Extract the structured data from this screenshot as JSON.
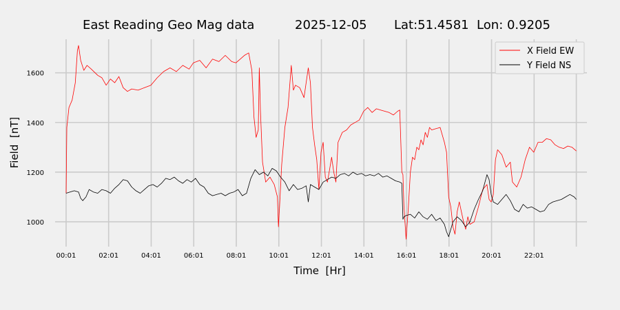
{
  "chart_data": {
    "type": "line",
    "title_parts": {
      "name": "East Reading Geo Mag data",
      "date": "2025-12-05",
      "coords": "Lat:51.4581  Lon: 0.9205"
    },
    "xlabel": "Time  [Hr]",
    "ylabel": "Field  [nT]",
    "x_unit": "hours",
    "xlim": [
      -0.5,
      24.5
    ],
    "ylim": [
      900,
      1735
    ],
    "x_ticks": [
      0.0167,
      2.0167,
      4.0167,
      6.0167,
      8.0167,
      10.0167,
      12.0167,
      14.0167,
      16.0167,
      18.0167,
      20.0167,
      22.0167,
      24.0
    ],
    "x_tick_labels": [
      "00:01",
      "02:01",
      "04:01",
      "06:01",
      "08:01",
      "10:01",
      "12:01",
      "14:01",
      "16:01",
      "18:01",
      "20:01",
      "22:01",
      ""
    ],
    "y_ticks": [
      1000,
      1200,
      1400,
      1600
    ],
    "y_tick_labels": [
      "1000",
      "1200",
      "1400",
      "1600"
    ],
    "grid": true,
    "legend_position": "top-right",
    "series": [
      {
        "name": "X Field EW",
        "color": "#ff0000",
        "x": [
          0.0167,
          0.05,
          0.15,
          0.3,
          0.45,
          0.55,
          0.6,
          0.7,
          0.85,
          1.0,
          1.2,
          1.5,
          1.7,
          1.9,
          2.1,
          2.3,
          2.5,
          2.7,
          2.9,
          3.1,
          3.4,
          3.7,
          4.0,
          4.3,
          4.6,
          4.9,
          5.2,
          5.5,
          5.8,
          6.0,
          6.3,
          6.6,
          6.9,
          7.2,
          7.5,
          7.8,
          8.0,
          8.2,
          8.4,
          8.6,
          8.75,
          8.85,
          8.95,
          9.05,
          9.1,
          9.15,
          9.25,
          9.4,
          9.6,
          9.8,
          9.95,
          10.0,
          10.05,
          10.15,
          10.3,
          10.45,
          10.6,
          10.7,
          10.8,
          11.0,
          11.2,
          11.4,
          11.5,
          11.6,
          11.7,
          11.8,
          11.9,
          12.0,
          12.1,
          12.2,
          12.3,
          12.4,
          12.5,
          12.6,
          12.7,
          12.8,
          13.0,
          13.2,
          13.4,
          13.6,
          13.8,
          14.0,
          14.2,
          14.4,
          14.6,
          14.8,
          15.0,
          15.2,
          15.4,
          15.6,
          15.7,
          15.8,
          15.85,
          15.9,
          16.0,
          16.1,
          16.2,
          16.3,
          16.4,
          16.5,
          16.6,
          16.7,
          16.8,
          16.9,
          17.0,
          17.1,
          17.2,
          17.4,
          17.6,
          17.8,
          17.9,
          18.0,
          18.1,
          18.2,
          18.3,
          18.4,
          18.5,
          18.6,
          18.7,
          18.8,
          18.9,
          19.0,
          19.2,
          19.4,
          19.6,
          19.8,
          19.9,
          20.0,
          20.1,
          20.2,
          20.3,
          20.5,
          20.7,
          20.9,
          21.0,
          21.2,
          21.4,
          21.6,
          21.8,
          22.0,
          22.2,
          22.4,
          22.6,
          22.8,
          23.0,
          23.2,
          23.4,
          23.6,
          23.8,
          24.0
        ],
        "values": [
          1115,
          1380,
          1460,
          1490,
          1560,
          1690,
          1710,
          1650,
          1610,
          1630,
          1615,
          1590,
          1580,
          1550,
          1575,
          1560,
          1585,
          1540,
          1525,
          1535,
          1530,
          1540,
          1550,
          1580,
          1605,
          1620,
          1605,
          1630,
          1615,
          1640,
          1650,
          1620,
          1655,
          1645,
          1670,
          1645,
          1640,
          1655,
          1670,
          1680,
          1610,
          1420,
          1340,
          1370,
          1620,
          1450,
          1240,
          1160,
          1180,
          1150,
          1100,
          980,
          1060,
          1230,
          1380,
          1460,
          1630,
          1530,
          1550,
          1540,
          1500,
          1620,
          1560,
          1380,
          1310,
          1250,
          1130,
          1280,
          1320,
          1180,
          1160,
          1210,
          1260,
          1200,
          1160,
          1320,
          1360,
          1370,
          1390,
          1400,
          1410,
          1445,
          1460,
          1440,
          1455,
          1450,
          1445,
          1440,
          1430,
          1445,
          1450,
          1200,
          1190,
          1060,
          930,
          1050,
          1200,
          1260,
          1250,
          1300,
          1290,
          1330,
          1310,
          1360,
          1340,
          1380,
          1370,
          1375,
          1380,
          1320,
          1280,
          1100,
          1060,
          980,
          950,
          1040,
          1080,
          1040,
          1000,
          970,
          1020,
          990,
          1000,
          1060,
          1130,
          1150,
          1090,
          1080,
          1110,
          1250,
          1290,
          1270,
          1220,
          1240,
          1160,
          1140,
          1180,
          1250,
          1300,
          1280,
          1320,
          1320,
          1335,
          1330,
          1310,
          1300,
          1295,
          1305,
          1300,
          1285
        ]
      },
      {
        "name": "Y Field NS",
        "color": "#000000",
        "x": [
          0.0167,
          0.2,
          0.4,
          0.6,
          0.7,
          0.8,
          0.95,
          1.1,
          1.3,
          1.5,
          1.7,
          1.9,
          2.1,
          2.3,
          2.5,
          2.7,
          2.9,
          3.1,
          3.3,
          3.5,
          3.7,
          3.9,
          4.1,
          4.3,
          4.5,
          4.7,
          4.9,
          5.1,
          5.3,
          5.5,
          5.7,
          5.9,
          6.1,
          6.3,
          6.5,
          6.7,
          6.9,
          7.1,
          7.3,
          7.5,
          7.7,
          7.9,
          8.1,
          8.3,
          8.5,
          8.7,
          8.9,
          9.1,
          9.3,
          9.5,
          9.7,
          9.9,
          10.1,
          10.3,
          10.5,
          10.7,
          10.9,
          11.1,
          11.3,
          11.4,
          11.5,
          11.7,
          11.9,
          12.1,
          12.3,
          12.5,
          12.7,
          12.9,
          13.1,
          13.3,
          13.5,
          13.7,
          13.9,
          14.1,
          14.3,
          14.5,
          14.7,
          14.9,
          15.1,
          15.3,
          15.5,
          15.7,
          15.8,
          15.85,
          15.9,
          16.0,
          16.2,
          16.4,
          16.6,
          16.8,
          17.0,
          17.2,
          17.4,
          17.6,
          17.8,
          17.9,
          18.0,
          18.2,
          18.4,
          18.6,
          18.8,
          19.0,
          19.2,
          19.4,
          19.6,
          19.8,
          19.9,
          20.0,
          20.1,
          20.3,
          20.5,
          20.7,
          20.9,
          21.1,
          21.3,
          21.5,
          21.7,
          21.9,
          22.1,
          22.3,
          22.5,
          22.7,
          22.9,
          23.1,
          23.3,
          23.5,
          23.7,
          23.9,
          24.0
        ],
        "values": [
          1115,
          1120,
          1125,
          1120,
          1095,
          1085,
          1100,
          1130,
          1120,
          1115,
          1130,
          1125,
          1115,
          1135,
          1150,
          1170,
          1165,
          1140,
          1125,
          1115,
          1130,
          1145,
          1150,
          1140,
          1155,
          1175,
          1170,
          1180,
          1165,
          1155,
          1170,
          1160,
          1175,
          1150,
          1140,
          1115,
          1105,
          1110,
          1115,
          1105,
          1115,
          1120,
          1130,
          1105,
          1115,
          1175,
          1210,
          1190,
          1200,
          1185,
          1215,
          1205,
          1180,
          1160,
          1125,
          1150,
          1130,
          1135,
          1145,
          1080,
          1150,
          1140,
          1130,
          1160,
          1170,
          1180,
          1175,
          1190,
          1195,
          1185,
          1200,
          1190,
          1195,
          1185,
          1190,
          1185,
          1195,
          1180,
          1185,
          1175,
          1165,
          1160,
          1155,
          1010,
          1020,
          1025,
          1030,
          1015,
          1040,
          1020,
          1010,
          1030,
          1005,
          1015,
          990,
          960,
          940,
          1000,
          1020,
          1005,
          980,
          1000,
          1050,
          1090,
          1125,
          1190,
          1170,
          1110,
          1080,
          1070,
          1090,
          1110,
          1085,
          1050,
          1040,
          1070,
          1055,
          1060,
          1050,
          1040,
          1045,
          1070,
          1080,
          1085,
          1090,
          1100,
          1110,
          1100,
          1090
        ]
      }
    ]
  }
}
